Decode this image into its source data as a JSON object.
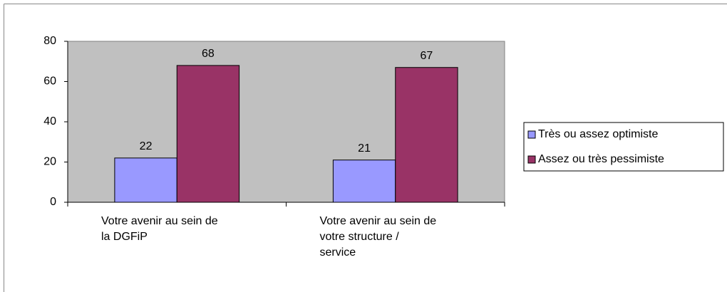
{
  "chart_data": {
    "type": "bar",
    "categories": [
      "Votre avenir au sein de la DGFiP",
      "Votre avenir au sein de votre structure / service"
    ],
    "series": [
      {
        "name": "Très ou assez optimiste",
        "color": "#9999ff",
        "values": [
          22,
          21
        ]
      },
      {
        "name": "Assez ou très pessimiste",
        "color": "#993366",
        "values": [
          68,
          67
        ]
      }
    ],
    "ylim": [
      0,
      80
    ],
    "yticks": [
      0,
      20,
      40,
      60,
      80
    ],
    "legend": "right",
    "plot_background": "#c0c0c0"
  }
}
